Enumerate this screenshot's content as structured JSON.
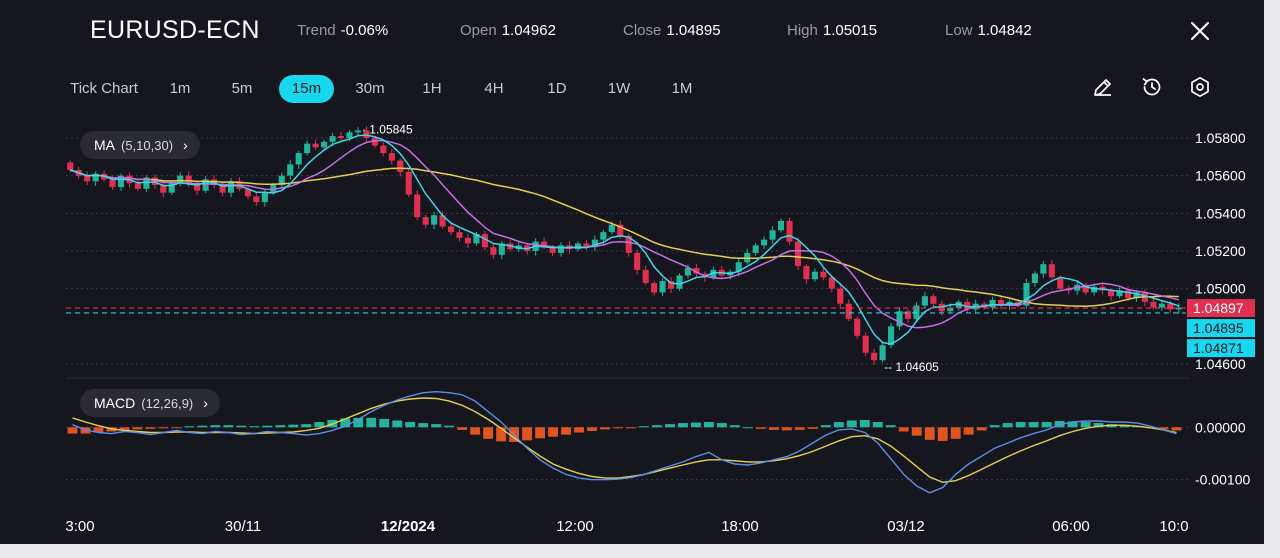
{
  "header": {
    "symbol": "EURUSD-ECN",
    "stats": [
      {
        "label": "Trend",
        "value": "-0.06%"
      },
      {
        "label": "Open",
        "value": "1.04962"
      },
      {
        "label": "Close",
        "value": "1.04895"
      },
      {
        "label": "High",
        "value": "1.05015"
      },
      {
        "label": "Low",
        "value": "1.04842"
      }
    ]
  },
  "timeframes": [
    {
      "label": "Tick Chart",
      "active": false
    },
    {
      "label": "1m",
      "active": false
    },
    {
      "label": "5m",
      "active": false
    },
    {
      "label": "15m",
      "active": true
    },
    {
      "label": "30m",
      "active": false
    },
    {
      "label": "1H",
      "active": false
    },
    {
      "label": "4H",
      "active": false
    },
    {
      "label": "1D",
      "active": false
    },
    {
      "label": "1W",
      "active": false
    },
    {
      "label": "1M",
      "active": false
    }
  ],
  "toolbar": {
    "icons": [
      "pencil-icon",
      "history-icon",
      "settings-icon",
      "close-icon"
    ]
  },
  "colors": {
    "up": "#23b59b",
    "down": "#e0304f",
    "accent": "#18d7ee",
    "ma5": "#3fd6e8",
    "ma10": "#c46fe6",
    "ma30": "#e5d04e",
    "macd_dif": "#5a8fe6",
    "macd_dea": "#e5d04e",
    "hist_pos": "#23b59b",
    "hist_neg": "#e0541f"
  },
  "chart_data": [
    {
      "type": "candlestick",
      "indicator_label": "MA",
      "indicator_params": "(5,10,30)",
      "y_ticks": [
        "1.05800",
        "1.05600",
        "1.05400",
        "1.05200",
        "1.05000",
        "1.04600"
      ],
      "ylim": [
        1.0456,
        1.059
      ],
      "x_ticks": [
        "3:00",
        "30/11",
        "12/2024",
        "12:00",
        "18:00",
        "03/12",
        "06:00",
        "10:0"
      ],
      "max_label": "1.05845",
      "min_label": "1.04605",
      "price_tags": [
        {
          "value": "1.04897",
          "kind": "last"
        },
        {
          "value": "1.04895",
          "kind": "bid"
        },
        {
          "value": "1.04871",
          "kind": "ask"
        }
      ],
      "series_close": [
        1.0563,
        1.056,
        1.0557,
        1.0561,
        1.0558,
        1.0554,
        1.056,
        1.0556,
        1.0553,
        1.0559,
        1.0555,
        1.0551,
        1.0556,
        1.056,
        1.0556,
        1.0552,
        1.0558,
        1.0555,
        1.0551,
        1.0557,
        1.0553,
        1.0549,
        1.0546,
        1.0551,
        1.0555,
        1.056,
        1.0566,
        1.0572,
        1.0577,
        1.0575,
        1.0578,
        1.0581,
        1.058,
        1.0583,
        1.0584,
        1.058,
        1.0576,
        1.0572,
        1.0568,
        1.0562,
        1.055,
        1.0538,
        1.0534,
        1.0539,
        1.0533,
        1.053,
        1.0527,
        1.0524,
        1.0529,
        1.0522,
        1.0518,
        1.0524,
        1.0521,
        1.0523,
        1.052,
        1.0525,
        1.0522,
        1.0519,
        1.0523,
        1.0521,
        1.0524,
        1.0522,
        1.0526,
        1.053,
        1.0534,
        1.0528,
        1.0519,
        1.051,
        1.0503,
        1.0498,
        1.0504,
        1.05,
        1.0507,
        1.0511,
        1.0508,
        1.0506,
        1.051,
        1.0507,
        1.0509,
        1.0514,
        1.0519,
        1.0523,
        1.0526,
        1.0531,
        1.0536,
        1.0525,
        1.0512,
        1.0505,
        1.0509,
        1.0506,
        1.05,
        1.0492,
        1.0484,
        1.0475,
        1.0466,
        1.0462,
        1.047,
        1.048,
        1.0488,
        1.0484,
        1.0491,
        1.0496,
        1.0492,
        1.0488,
        1.049,
        1.0493,
        1.0489,
        1.0492,
        1.049,
        1.0494,
        1.0491,
        1.0493,
        1.0491,
        1.0503,
        1.0508,
        1.0513,
        1.0506,
        1.05,
        1.0499,
        1.0502,
        1.0498,
        1.0501,
        1.0499,
        1.0496,
        1.0499,
        1.0495,
        1.0498,
        1.0493,
        1.049,
        1.0492,
        1.0489,
        1.049
      ]
    },
    {
      "type": "macd",
      "indicator_label": "MACD",
      "indicator_params": "(12,26,9)",
      "y_ticks": [
        "0.00000",
        "-0.00100"
      ],
      "ylim": [
        -0.00135,
        0.00075
      ],
      "dif": [
        5e-05,
        -5e-05,
        -0.0001,
        -0.00012,
        -8e-05,
        -0.0001,
        -0.00014,
        -0.0001,
        -6e-05,
        -0.0001,
        -0.00012,
        -8e-05,
        -0.0001,
        -0.00014,
        -0.00012,
        -8e-05,
        -0.0001,
        -0.00012,
        -0.00015,
        -0.00012,
        -6e-05,
        2e-05,
        0.00015,
        0.0003,
        0.00042,
        0.00052,
        0.0006,
        0.00066,
        0.00068,
        0.00066,
        0.00062,
        0.0005,
        0.0003,
        0.0001,
        -0.00015,
        -0.0004,
        -0.00062,
        -0.00078,
        -0.0009,
        -0.00097,
        -0.001,
        -0.001,
        -0.00099,
        -0.00096,
        -0.0009,
        -0.00082,
        -0.00074,
        -0.00066,
        -0.00056,
        -0.00048,
        -0.00062,
        -0.0007,
        -0.00072,
        -0.00068,
        -0.00062,
        -0.00056,
        -0.00045,
        -0.0003,
        -0.00015,
        -5e-05,
        -3e-05,
        -0.0001,
        -0.0003,
        -0.0006,
        -0.0009,
        -0.00112,
        -0.00125,
        -0.00115,
        -0.0009,
        -0.0007,
        -0.00055,
        -0.0004,
        -0.0003,
        -0.0002,
        -0.00012,
        -5e-05,
        5e-05,
        0.0001,
        0.00012,
        0.00012,
        0.0001,
        0.0001,
        8e-05,
        2e-05,
        -5e-05,
        -0.00012
      ],
      "dea": [
        0.00018,
        0.0001,
        3e-05,
        -3e-05,
        -6e-05,
        -8e-05,
        -0.0001,
        -0.0001,
        -9e-05,
        -9e-05,
        -0.0001,
        -0.0001,
        -0.0001,
        -0.00011,
        -0.00012,
        -0.00011,
        -0.0001,
        -9e-05,
        -6e-05,
        -2e-05,
        6e-05,
        0.00016,
        0.00026,
        0.00036,
        0.00044,
        0.0005,
        0.00054,
        0.00056,
        0.00055,
        0.0005,
        0.00042,
        0.0003,
        0.00015,
        -2e-05,
        -0.0002,
        -0.00038,
        -0.00055,
        -0.0007,
        -0.0008,
        -0.00088,
        -0.00094,
        -0.00097,
        -0.00097,
        -0.00094,
        -0.0009,
        -0.00084,
        -0.00078,
        -0.00072,
        -0.00066,
        -0.00062,
        -0.00062,
        -0.00064,
        -0.00066,
        -0.00066,
        -0.00064,
        -0.0006,
        -0.00054,
        -0.00046,
        -0.00036,
        -0.00026,
        -0.00018,
        -0.00016,
        -0.00022,
        -0.00036,
        -0.00055,
        -0.00075,
        -0.00095,
        -0.00105,
        -0.00102,
        -0.00092,
        -0.0008,
        -0.00068,
        -0.00056,
        -0.00045,
        -0.00035,
        -0.00026,
        -0.00016,
        -8e-05,
        -2e-05,
        2e-05,
        4e-05,
        4e-05,
        2e-05,
        -1e-05,
        -5e-05,
        -0.0001
      ],
      "hist": [
        -0.00012,
        -0.00012,
        -0.0001,
        -8e-05,
        -6e-05,
        -4e-05,
        -3e-05,
        -2e-05,
        -1e-05,
        2e-05,
        3e-05,
        4e-05,
        4e-05,
        3e-05,
        2e-05,
        3e-05,
        4e-05,
        5e-05,
        6e-05,
        0.0001,
        0.00014,
        0.00017,
        0.00018,
        0.00018,
        0.00016,
        0.00013,
        0.0001,
        8e-05,
        6e-05,
        3e-05,
        -5e-05,
        -0.00014,
        -0.00022,
        -0.00027,
        -0.00028,
        -0.00025,
        -0.00021,
        -0.00018,
        -0.00014,
        -0.0001,
        -7e-05,
        -4e-05,
        -2e-05,
        -1e-05,
        2e-05,
        4e-05,
        6e-05,
        8e-05,
        9e-05,
        0.0001,
        8e-05,
        4e-05,
        0,
        -3e-05,
        -5e-05,
        -6e-05,
        -5e-05,
        -3e-05,
        4e-05,
        0.0001,
        0.00013,
        0.00014,
        0.0001,
        4e-05,
        -8e-05,
        -0.00016,
        -0.00024,
        -0.00026,
        -0.00022,
        -0.00014,
        -6e-05,
        4e-05,
        8e-05,
        0.0001,
        0.0001,
        0.0001,
        0.00012,
        0.00011,
        0.0001,
        8e-05,
        6e-05,
        4e-05,
        2e-05,
        -2e-05,
        -4e-05,
        -6e-05
      ]
    }
  ]
}
